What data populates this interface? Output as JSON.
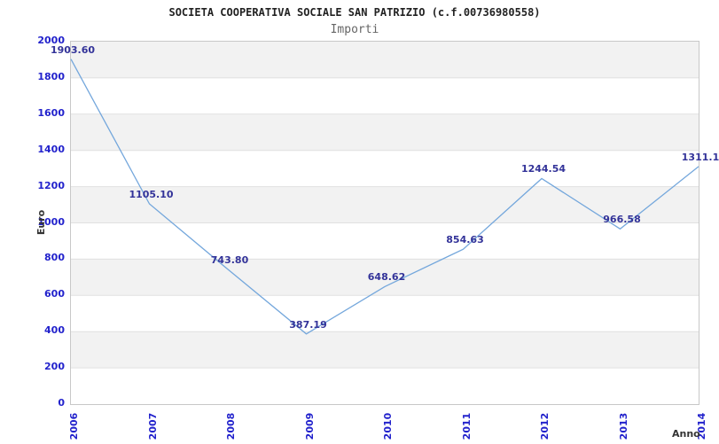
{
  "header": {
    "title": "SOCIETA COOPERATIVA SOCIALE SAN PATRIZIO (c.f.00736980558)",
    "subtitle": "Importi"
  },
  "chart_data": {
    "type": "line",
    "x": [
      "2006",
      "2007",
      "2008",
      "2009",
      "2010",
      "2011",
      "2012",
      "2013",
      "2014"
    ],
    "values": [
      1903.6,
      1105.1,
      743.8,
      387.19,
      648.62,
      854.63,
      1244.54,
      966.58,
      1311.1
    ],
    "point_labels": [
      "1903.60",
      "1105.10",
      "743.80",
      "387.19",
      "648.62",
      "854.63",
      "1244.54",
      "966.58",
      "1311.1"
    ],
    "title": "SOCIETA COOPERATIVA SOCIALE SAN PATRIZIO (c.f.00736980558)",
    "subtitle": "Importi",
    "xlabel": "Anno",
    "ylabel": "Euro",
    "ylim": [
      0,
      2000
    ],
    "ytick_step": 200,
    "grid": "horizontal-bands-alternating",
    "legend": "none",
    "colors": {
      "line": "#74a7dc",
      "band": "#f2f2f2",
      "gridline": "#e0e0e0",
      "tick_label": "#2222cc",
      "point_label": "#333399",
      "axis_title": "#333333",
      "plot_border": "#c8c8c8",
      "title_text": "#222222",
      "subtitle_text": "#666666"
    }
  }
}
